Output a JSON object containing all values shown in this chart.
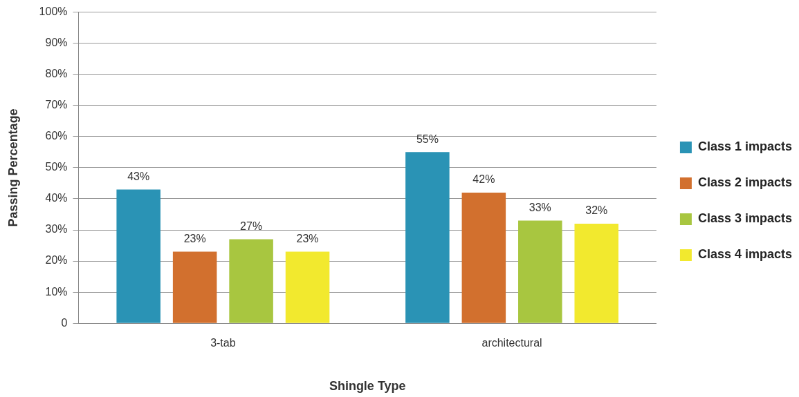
{
  "chart_data": {
    "type": "bar",
    "xlabel": "Shingle Type",
    "ylabel": "Passing Percentage",
    "categories": [
      "3-tab",
      "architectural"
    ],
    "series": [
      {
        "name": "Class 1 impacts",
        "color": "#2a93b5",
        "values": [
          43,
          55
        ],
        "value_labels": [
          "43%",
          "55%"
        ]
      },
      {
        "name": "Class 2 impacts",
        "color": "#d2702e",
        "values": [
          23,
          42
        ],
        "value_labels": [
          "23%",
          "42%"
        ]
      },
      {
        "name": "Class 3 impacts",
        "color": "#a8c640",
        "values": [
          27,
          33
        ],
        "value_labels": [
          "27%",
          "33%"
        ]
      },
      {
        "name": "Class 4 impacts",
        "color": "#f2e92e",
        "values": [
          23,
          32
        ],
        "value_labels": [
          "23%",
          "32%"
        ]
      }
    ],
    "ylim": [
      0,
      100
    ],
    "yticks": [
      {
        "value": 0,
        "label": "0"
      },
      {
        "value": 10,
        "label": "10%"
      },
      {
        "value": 20,
        "label": "20%"
      },
      {
        "value": 30,
        "label": "30%"
      },
      {
        "value": 40,
        "label": "40%"
      },
      {
        "value": 50,
        "label": "50%"
      },
      {
        "value": 60,
        "label": "60%"
      },
      {
        "value": 70,
        "label": "70%"
      },
      {
        "value": 80,
        "label": "80%"
      },
      {
        "value": 90,
        "label": "90%"
      },
      {
        "value": 100,
        "label": "100%"
      }
    ],
    "grid": "y",
    "legend": "right"
  }
}
